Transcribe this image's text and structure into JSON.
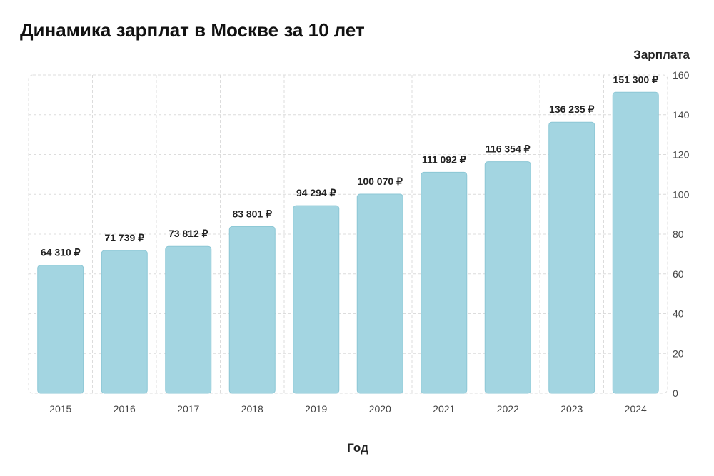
{
  "chart_data": {
    "type": "bar",
    "title": "Динамика зарплат в Москве за 10 лет",
    "xlabel": "Год",
    "ylabel": "Зарплата",
    "categories": [
      "2015",
      "2016",
      "2017",
      "2018",
      "2019",
      "2020",
      "2021",
      "2022",
      "2023",
      "2024"
    ],
    "values": [
      64310,
      71739,
      73812,
      83801,
      94294,
      100070,
      111092,
      116354,
      136235,
      151300
    ],
    "value_labels": [
      "64 310 ₽",
      "71 739 ₽",
      "73 812 ₽",
      "83 801 ₽",
      "94 294 ₽",
      "100 070 ₽",
      "111 092 ₽",
      "116 354 ₽",
      "136 235 ₽",
      "151 300 ₽"
    ],
    "y_axis_unit_divisor": 1000,
    "yticks": [
      "0",
      "20",
      "40",
      "60",
      "80",
      "100",
      "120",
      "140",
      "160"
    ],
    "ylim": [
      0,
      160
    ],
    "grid": true,
    "y_axis_position": "right",
    "bar_color": "#a3d5e1"
  }
}
